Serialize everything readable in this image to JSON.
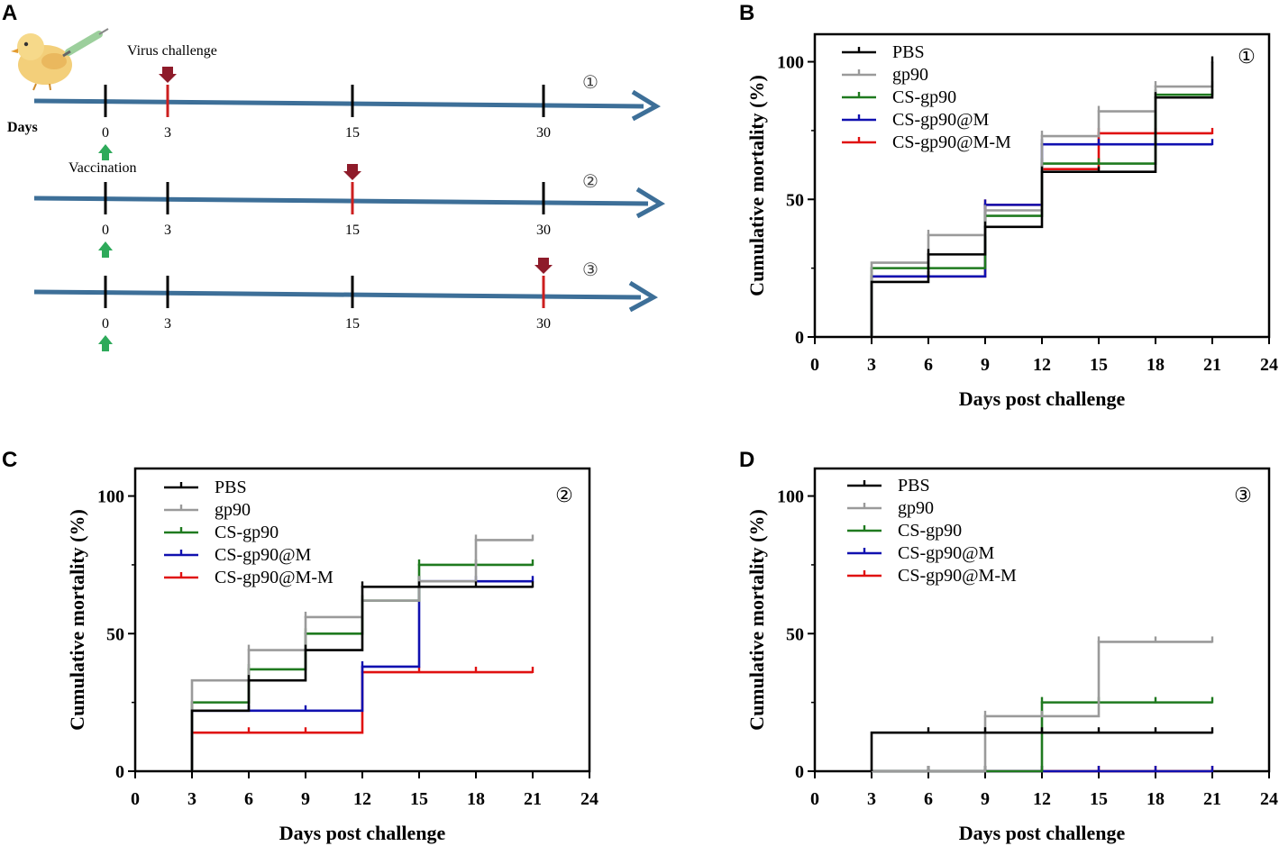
{
  "panel_labels": [
    "A",
    "B",
    "C",
    "D"
  ],
  "timeline": {
    "days_label": "Days",
    "virus_challenge_label": "Virus challenge",
    "vaccination_label": "Vaccination",
    "tick_labels": [
      "0",
      "3",
      "15",
      "30"
    ],
    "markers": [
      "①",
      "②",
      "③"
    ],
    "challenge_days": [
      "3",
      "15",
      "30"
    ]
  },
  "colors": {
    "PBS": "#000000",
    "gp90": "#9a9a9a",
    "CS-gp90": "#1f7a1f",
    "CS-gp90@M": "#1010b0",
    "CS-gp90@M-M": "#e01010",
    "timeline_arrow": "#3d6f98",
    "challenge_marker": "#cc1f1f",
    "vaccination_arrow": "#2eaa5a"
  },
  "chart_data": [
    {
      "type": "line",
      "panel": "B",
      "marker": "①",
      "title": "",
      "xlabel": "Days post challenge",
      "ylabel": "Cumulative mortality (%)",
      "xlim": [
        0,
        24
      ],
      "ylim": [
        0,
        110
      ],
      "xticks": [
        "0",
        "3",
        "6",
        "9",
        "12",
        "15",
        "18",
        "21",
        "24"
      ],
      "yticks": [
        "0",
        "50",
        "100"
      ],
      "x": [
        3,
        6,
        9,
        12,
        15,
        18,
        21
      ],
      "series": [
        {
          "name": "PBS",
          "values": [
            20,
            30,
            40,
            60,
            60,
            87,
            100
          ]
        },
        {
          "name": "gp90",
          "values": [
            27,
            37,
            46,
            73,
            82,
            91,
            91
          ]
        },
        {
          "name": "CS-gp90",
          "values": [
            25,
            25,
            44,
            63,
            63,
            88,
            88
          ]
        },
        {
          "name": "CS-gp90@M",
          "values": [
            22,
            22,
            48,
            70,
            70,
            70,
            70
          ]
        },
        {
          "name": "CS-gp90@M-M",
          "values": [
            22,
            22,
            48,
            61,
            74,
            74,
            74
          ]
        }
      ]
    },
    {
      "type": "line",
      "panel": "C",
      "marker": "②",
      "title": "",
      "xlabel": "Days post challenge",
      "ylabel": "Cumulative mortality (%)",
      "xlim": [
        0,
        24
      ],
      "ylim": [
        0,
        110
      ],
      "xticks": [
        "0",
        "3",
        "6",
        "9",
        "12",
        "15",
        "18",
        "21",
        "24"
      ],
      "yticks": [
        "0",
        "50",
        "100"
      ],
      "x": [
        3,
        6,
        9,
        12,
        15,
        18,
        21
      ],
      "series": [
        {
          "name": "PBS",
          "values": [
            22,
            33,
            44,
            67,
            67,
            67,
            67
          ]
        },
        {
          "name": "gp90",
          "values": [
            33,
            44,
            56,
            62,
            69,
            84,
            84
          ]
        },
        {
          "name": "CS-gp90",
          "values": [
            25,
            37,
            50,
            62,
            75,
            75,
            75
          ]
        },
        {
          "name": "CS-gp90@M",
          "values": [
            22,
            22,
            22,
            38,
            69,
            69,
            69
          ]
        },
        {
          "name": "CS-gp90@M-M",
          "values": [
            14,
            14,
            14,
            36,
            36,
            36,
            36
          ]
        }
      ]
    },
    {
      "type": "line",
      "panel": "D",
      "marker": "③",
      "title": "",
      "xlabel": "Days post challenge",
      "ylabel": "Cumulative mortality (%)",
      "xlim": [
        0,
        24
      ],
      "ylim": [
        0,
        110
      ],
      "xticks": [
        "0",
        "3",
        "6",
        "9",
        "12",
        "15",
        "18",
        "21",
        "24"
      ],
      "yticks": [
        "0",
        "50",
        "100"
      ],
      "x": [
        3,
        6,
        9,
        12,
        15,
        18,
        21
      ],
      "series": [
        {
          "name": "PBS",
          "values": [
            14,
            14,
            14,
            14,
            14,
            14,
            14
          ]
        },
        {
          "name": "gp90",
          "values": [
            0,
            0,
            20,
            20,
            47,
            47,
            47
          ]
        },
        {
          "name": "CS-gp90",
          "values": [
            0,
            0,
            0,
            25,
            25,
            25,
            25
          ]
        },
        {
          "name": "CS-gp90@M",
          "values": [
            0,
            0,
            0,
            0,
            0,
            0,
            0
          ]
        },
        {
          "name": "CS-gp90@M-M",
          "values": [
            0,
            0,
            0,
            0,
            0,
            0,
            0
          ]
        }
      ]
    }
  ]
}
